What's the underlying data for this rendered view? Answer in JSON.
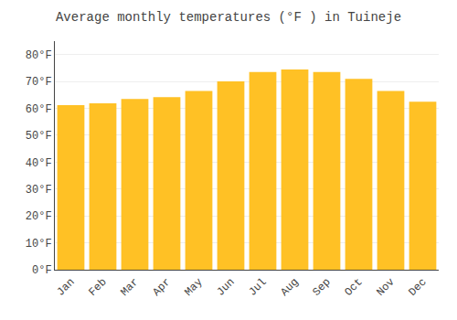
{
  "chart_data": {
    "type": "bar",
    "title": "Average monthly temperatures (°F ) in Tuineje",
    "categories": [
      "Jan",
      "Feb",
      "Mar",
      "Apr",
      "May",
      "Jun",
      "Jul",
      "Aug",
      "Sep",
      "Oct",
      "Nov",
      "Dec"
    ],
    "values": [
      61.2,
      61.9,
      63.5,
      64.2,
      66.5,
      70.0,
      73.5,
      74.5,
      73.5,
      71.0,
      66.5,
      62.5
    ],
    "color": "#FFC125",
    "ylim": [
      0,
      85
    ],
    "yticks": [
      {
        "value": 0,
        "label": "0°F"
      },
      {
        "value": 10,
        "label": "10°F"
      },
      {
        "value": 20,
        "label": "20°F"
      },
      {
        "value": 30,
        "label": "30°F"
      },
      {
        "value": 40,
        "label": "40°F"
      },
      {
        "value": 50,
        "label": "50°F"
      },
      {
        "value": 60,
        "label": "60°F"
      },
      {
        "value": 70,
        "label": "70°F"
      },
      {
        "value": 80,
        "label": "80°F"
      }
    ],
    "grid": true
  }
}
